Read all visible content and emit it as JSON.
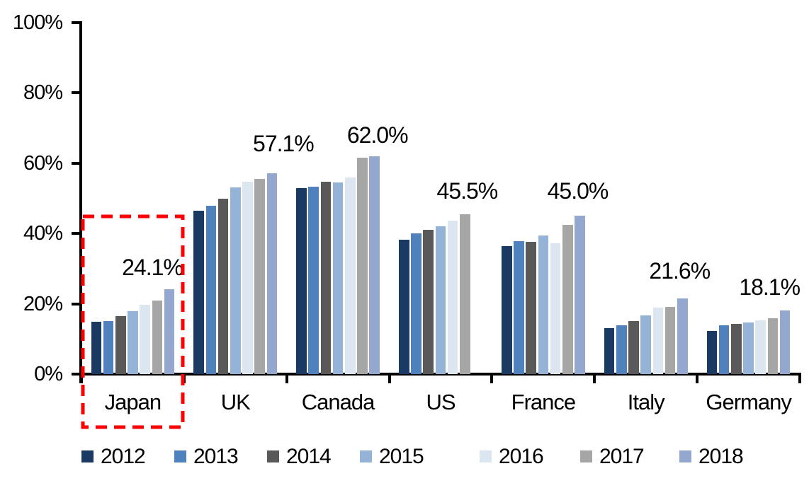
{
  "chart_data": {
    "type": "bar",
    "title": "",
    "xlabel": "",
    "ylabel": "",
    "categories": [
      "Japan",
      "UK",
      "Canada",
      "US",
      "France",
      "Italy",
      "Germany"
    ],
    "series": [
      {
        "name": "2012",
        "color": "#1A3A64",
        "values": [
          14.8,
          46.5,
          52.9,
          38.2,
          36.5,
          13.1,
          12.3
        ]
      },
      {
        "name": "2013",
        "color": "#4F81BD",
        "values": [
          15.0,
          47.8,
          53.3,
          40.0,
          37.8,
          13.9,
          13.9
        ]
      },
      {
        "name": "2014",
        "color": "#595959",
        "values": [
          16.5,
          50.0,
          54.7,
          41.0,
          37.7,
          15.1,
          14.3
        ]
      },
      {
        "name": "2015",
        "color": "#95B3D7",
        "values": [
          18.0,
          53.1,
          54.5,
          42.0,
          39.4,
          16.7,
          14.7
        ]
      },
      {
        "name": "2016",
        "color": "#DCE6F1",
        "values": [
          19.8,
          54.7,
          55.9,
          43.6,
          37.3,
          18.9,
          15.3
        ]
      },
      {
        "name": "2017",
        "color": "#A6A6A6",
        "values": [
          21.0,
          55.5,
          61.6,
          45.5,
          42.4,
          19.1,
          15.9
        ]
      },
      {
        "name": "2018",
        "color": "#94A7CF",
        "values": [
          24.1,
          57.1,
          62.0,
          null,
          45.0,
          21.6,
          18.1
        ]
      }
    ],
    "data_labels": [
      "24.1%",
      "57.1%",
      "62.0%",
      "45.5%",
      "45.0%",
      "21.6%",
      "18.1%"
    ],
    "y_ticks": [
      "0%",
      "20%",
      "40%",
      "60%",
      "80%",
      "100%"
    ],
    "ylim": [
      0,
      100
    ],
    "grid": false,
    "legend_position": "bottom",
    "highlight": {
      "category": "Japan",
      "style": "red-dashed-box",
      "color": "#FE0000"
    }
  }
}
